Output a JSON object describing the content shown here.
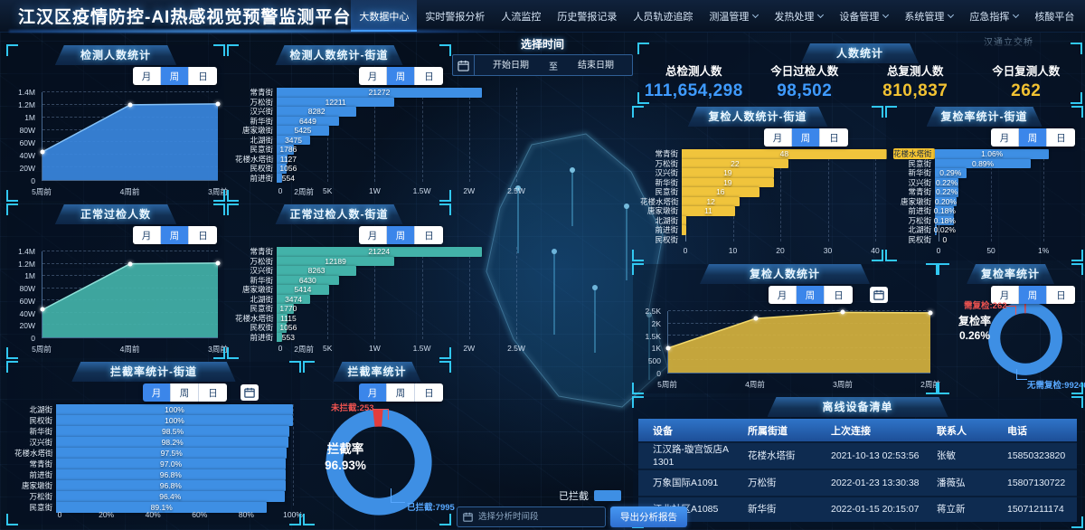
{
  "app": {
    "title": "江汉区疫情防控-AI热感视觉预警监测平台"
  },
  "nav": {
    "items": [
      {
        "label": "大数据中心",
        "active": true,
        "dropdown": false
      },
      {
        "label": "实时警报分析",
        "active": false,
        "dropdown": false
      },
      {
        "label": "人流监控",
        "active": false,
        "dropdown": false
      },
      {
        "label": "历史警报记录",
        "active": false,
        "dropdown": false
      },
      {
        "label": "人员轨迹追踪",
        "active": false,
        "dropdown": false
      },
      {
        "label": "测温管理",
        "active": false,
        "dropdown": true
      },
      {
        "label": "发热处理",
        "active": false,
        "dropdown": true
      },
      {
        "label": "设备管理",
        "active": false,
        "dropdown": true
      },
      {
        "label": "系统管理",
        "active": false,
        "dropdown": true
      },
      {
        "label": "应急指挥",
        "active": false,
        "dropdown": true
      },
      {
        "label": "核酸平台",
        "active": false,
        "dropdown": false
      }
    ],
    "icons": [
      "undo-icon",
      "target-icon",
      "fullscreen-icon",
      "user-avatar-button"
    ]
  },
  "time_filter": {
    "title": "选择时间",
    "start_placeholder": "开始日期",
    "separator": "至",
    "end_placeholder": "结束日期"
  },
  "tabs_labels": [
    "月",
    "周",
    "日"
  ],
  "stats": {
    "title": "人数统计",
    "items": [
      {
        "label": "总检测人数",
        "value": "111,654,298",
        "color": "#3f9bff"
      },
      {
        "label": "今日过检人数",
        "value": "98,502",
        "color": "#3f9bff"
      },
      {
        "label": "总复测人数",
        "value": "810,837",
        "color": "#f2c232"
      },
      {
        "label": "今日复测人数",
        "value": "262",
        "color": "#f2c232"
      }
    ]
  },
  "chart_data": [
    {
      "id": "detect_area",
      "type": "area",
      "title": "检测人数统计",
      "active_tab": "周",
      "color": "#3a87de",
      "stroke": "#84c1f7",
      "x": [
        "5周前",
        "4周前",
        "3周前"
      ],
      "values": [
        450000,
        1200000,
        1215000
      ],
      "yticks": [
        "0",
        "20W",
        "40W",
        "60W",
        "80W",
        "1M",
        "1.2M",
        "1.4M"
      ],
      "ymax": 1400000,
      "grid": true
    },
    {
      "id": "detect_bar",
      "type": "hbar",
      "title": "检测人数统计-街道",
      "active_tab": "周",
      "color": "#3e8fe4",
      "xmax": 25000,
      "overflow": 1.45,
      "xticks": [
        "0",
        "5K",
        "1W",
        "1.5W",
        "2W",
        "2.5W"
      ],
      "xtick_values": [
        0,
        5000,
        10000,
        15000,
        20000,
        25000
      ],
      "stray_label": "2周前",
      "categories": [
        {
          "name": "常青街",
          "value": 21272,
          "label": "21272"
        },
        {
          "name": "万松街",
          "value": 12211,
          "label": "12211"
        },
        {
          "name": "汉兴街",
          "value": 8282,
          "label": "8282"
        },
        {
          "name": "新华街",
          "value": 6449,
          "label": "6449"
        },
        {
          "name": "唐家墩街",
          "value": 5425,
          "label": "5425"
        },
        {
          "name": "北湖街",
          "value": 3475,
          "label": "3475"
        },
        {
          "name": "民意街",
          "value": 1786,
          "label": "1786"
        },
        {
          "name": "花楼水塔街",
          "value": 1127,
          "label": "1127"
        },
        {
          "name": "民权街",
          "value": 1056,
          "label": "1056"
        },
        {
          "name": "前进街",
          "value": 554,
          "label": "554"
        }
      ]
    },
    {
      "id": "normal_area",
      "type": "area",
      "title": "正常过检人数",
      "active_tab": "周",
      "color": "#43b2a9",
      "stroke": "#8fe0d8",
      "x": [
        "5周前",
        "4周前",
        "3周前"
      ],
      "values": [
        450000,
        1200000,
        1210000
      ],
      "yticks": [
        "0",
        "20W",
        "40W",
        "60W",
        "80W",
        "1M",
        "1.2M",
        "1.4M"
      ],
      "ymax": 1400000,
      "grid": true
    },
    {
      "id": "normal_bar",
      "type": "hbar",
      "title": "正常过检人数-街道",
      "active_tab": "周",
      "color": "#43b2a9",
      "xmax": 25000,
      "overflow": 1.45,
      "xticks": [
        "0",
        "5K",
        "1W",
        "1.5W",
        "2W",
        "2.5W"
      ],
      "xtick_values": [
        0,
        5000,
        10000,
        15000,
        20000,
        25000
      ],
      "stray_label": "2周前",
      "categories": [
        {
          "name": "常青街",
          "value": 21224,
          "label": "21224"
        },
        {
          "name": "万松街",
          "value": 12189,
          "label": "12189"
        },
        {
          "name": "汉兴街",
          "value": 8263,
          "label": "8263"
        },
        {
          "name": "新华街",
          "value": 6430,
          "label": "6430"
        },
        {
          "name": "唐家墩街",
          "value": 5414,
          "label": "5414"
        },
        {
          "name": "北湖街",
          "value": 3474,
          "label": "3474"
        },
        {
          "name": "民意街",
          "value": 1770,
          "label": "1770"
        },
        {
          "name": "花楼水塔街",
          "value": 1115,
          "label": "1115"
        },
        {
          "name": "民权街",
          "value": 1056,
          "label": "1056"
        },
        {
          "name": "前进街",
          "value": 553,
          "label": "553"
        }
      ]
    },
    {
      "id": "intercept_bar",
      "type": "hbar",
      "title": "拦截率统计-街道",
      "active_tab": "月",
      "color": "#3e8fe4",
      "xmax": 100,
      "has_calendar": true,
      "xticks": [
        "0",
        "20%",
        "40%",
        "60%",
        "80%",
        "100%"
      ],
      "xtick_values": [
        0,
        20,
        40,
        60,
        80,
        100
      ],
      "categories": [
        {
          "name": "北湖街",
          "value": 100,
          "label": "100%"
        },
        {
          "name": "民权街",
          "value": 100,
          "label": "100%"
        },
        {
          "name": "新华街",
          "value": 98.5,
          "label": "98.5%"
        },
        {
          "name": "汉兴街",
          "value": 98.2,
          "label": "98.2%"
        },
        {
          "name": "花楼水塔街",
          "value": 97.5,
          "label": "97.5%"
        },
        {
          "name": "常青街",
          "value": 97.0,
          "label": "97.0%"
        },
        {
          "name": "前进街",
          "value": 96.8,
          "label": "96.8%"
        },
        {
          "name": "唐家墩街",
          "value": 96.8,
          "label": "96.8%"
        },
        {
          "name": "万松街",
          "value": 96.4,
          "label": "96.4%"
        },
        {
          "name": "民意街",
          "value": 89.1,
          "label": "89.1%"
        }
      ]
    },
    {
      "id": "intercept_donut",
      "type": "donut",
      "title": "拦截率统计",
      "active_tab": "月",
      "center_label": "拦截率",
      "center_value": "96.93%",
      "slices": [
        {
          "name": "已拦截",
          "value": 7995,
          "color": "#3e8fe4",
          "label": "已拦截:7995"
        },
        {
          "name": "未拦截",
          "value": 253,
          "color": "#e23d3d",
          "label": "未拦截:253"
        }
      ]
    },
    {
      "id": "recheck_bar",
      "type": "hbar",
      "title": "复检人数统计-街道",
      "active_tab": "周",
      "color": "#f0c43c",
      "xmax": 40,
      "xticks": [
        "0",
        "10",
        "20",
        "30",
        "40"
      ],
      "xtick_values": [
        0,
        10,
        20,
        30,
        40
      ],
      "categories": [
        {
          "name": "常青街",
          "value": 48,
          "label": "48"
        },
        {
          "name": "万松街",
          "value": 22,
          "label": "22"
        },
        {
          "name": "汉兴街",
          "value": 19,
          "label": "19"
        },
        {
          "name": "新华街",
          "value": 19,
          "label": "19"
        },
        {
          "name": "民意街",
          "value": 16,
          "label": "16"
        },
        {
          "name": "花楼水塔街",
          "value": 12,
          "label": "12"
        },
        {
          "name": "唐家墩街",
          "value": 11,
          "label": "11"
        },
        {
          "name": "北湖街",
          "value": 1,
          "label": ""
        },
        {
          "name": "前进街",
          "value": 1,
          "label": ""
        },
        {
          "name": "民权街",
          "value": 0,
          "label": ""
        }
      ]
    },
    {
      "id": "recheck_rate_bar",
      "type": "hbar",
      "title": "复检率统计-街道",
      "active_tab": "周",
      "color": "#3e8fe4",
      "xmax": 1.3,
      "xticks": [
        "0",
        "50",
        "1%"
      ],
      "xtick_values": [
        0,
        0.5,
        1
      ],
      "categories": [
        {
          "name": "花楼水塔街",
          "value": 1.06,
          "label": "1.06%",
          "highlight": true
        },
        {
          "name": "民意街",
          "value": 0.89,
          "label": "0.89%"
        },
        {
          "name": "新华街",
          "value": 0.29,
          "label": "0.29%"
        },
        {
          "name": "汉兴街",
          "value": 0.22,
          "label": "0.22%"
        },
        {
          "name": "常青街",
          "value": 0.22,
          "label": "0.22%"
        },
        {
          "name": "唐家墩街",
          "value": 0.2,
          "label": "0.20%"
        },
        {
          "name": "前进街",
          "value": 0.18,
          "label": "0.18%"
        },
        {
          "name": "万松街",
          "value": 0.18,
          "label": "0.18%"
        },
        {
          "name": "北湖街",
          "value": 0.02,
          "label": "0.02%"
        },
        {
          "name": "民权街",
          "value": 0,
          "label": "0"
        }
      ]
    },
    {
      "id": "recheck_area",
      "type": "area",
      "title": "复检人数统计",
      "active_tab": "周",
      "color": "#d5b23e",
      "stroke": "#f3d96b",
      "has_calendar": true,
      "x": [
        "5周前",
        "4周前",
        "3周前",
        "2周前"
      ],
      "values": [
        1000,
        2200,
        2450,
        2430
      ],
      "yticks": [
        "0",
        "500",
        "1K",
        "1.5K",
        "2K",
        "2.5K"
      ],
      "ymax": 2500,
      "grid": true
    },
    {
      "id": "recheck_donut",
      "type": "donut",
      "title": "复检率统计",
      "active_tab": "周",
      "center_label": "复检率",
      "center_value": "0.26%",
      "slices": [
        {
          "name": "无需复检",
          "value": 99240,
          "color": "#3e8fe4",
          "label": "无需复检:99240"
        },
        {
          "name": "需复检",
          "value": 262,
          "color": "#e23d3d",
          "label": "需复检:262"
        }
      ]
    }
  ],
  "bottom_controls": {
    "legend_label": "已拦截",
    "input_placeholder": "选择分析时间段",
    "export_label": "导出分析报告"
  },
  "device_table": {
    "title": "离线设备清单",
    "columns": [
      "设备",
      "所属街道",
      "上次连接",
      "联系人",
      "电话"
    ],
    "rows": [
      [
        "江汉路-璇宫饭店A1301",
        "花楼水塔街",
        "2021-10-13 02:53:56",
        "张敏",
        "15850323820"
      ],
      [
        "万象国际A1091",
        "万松街",
        "2022-01-23 13:30:38",
        "潘薇弘",
        "15807130722"
      ],
      [
        "江北社区A1085",
        "新华街",
        "2022-01-15 20:15:07",
        "蒋立新",
        "15071211174"
      ]
    ]
  },
  "map": {
    "labels": [
      "汉通立交桥"
    ]
  }
}
